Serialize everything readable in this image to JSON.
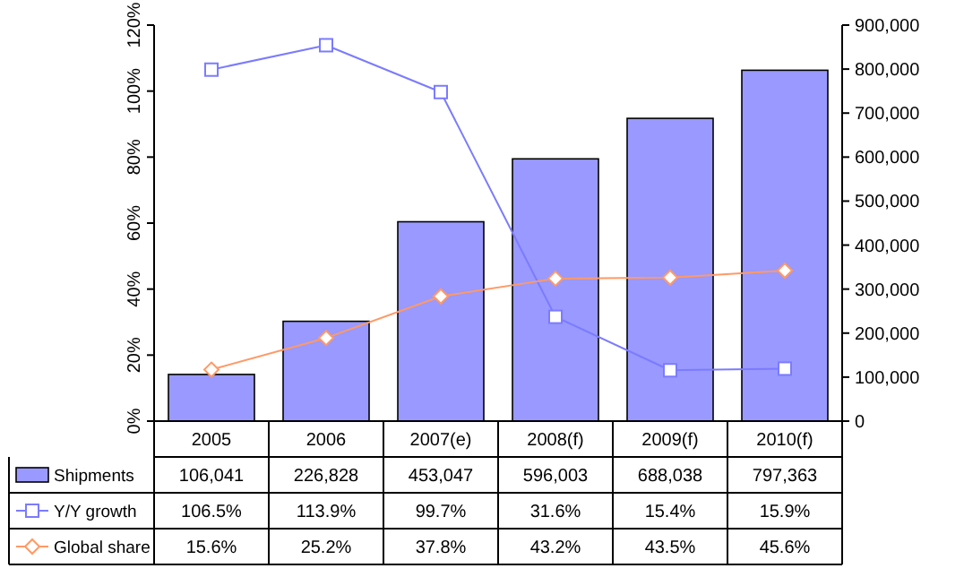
{
  "chart_data": {
    "type": "bar",
    "categories": [
      "2005",
      "2006",
      "2007(e)",
      "2008(f)",
      "2009(f)",
      "2010(f)"
    ],
    "series": [
      {
        "name": "Shipments",
        "axis": "y2",
        "color": "#9999ff",
        "values": [
          106041,
          226828,
          453047,
          596003,
          688038,
          797363
        ],
        "value_labels": [
          "106,041",
          "226,828",
          "453,047",
          "596,003",
          "688,038",
          "797,363"
        ]
      },
      {
        "name": "Y/Y growth",
        "type": "line",
        "axis": "y",
        "color": "#7b7bff",
        "marker": "square",
        "values": [
          106.5,
          113.9,
          99.7,
          31.6,
          15.4,
          15.9
        ],
        "value_labels": [
          "106.5%",
          "113.9%",
          "99.7%",
          "31.6%",
          "15.4%",
          "15.9%"
        ]
      },
      {
        "name": "Global share",
        "type": "line",
        "axis": "y",
        "color": "#ff9966",
        "marker": "diamond",
        "values": [
          15.6,
          25.2,
          37.8,
          43.2,
          43.5,
          45.6
        ],
        "value_labels": [
          "15.6%",
          "25.2%",
          "37.8%",
          "43.2%",
          "43.5%",
          "45.6%"
        ]
      }
    ],
    "ylim": [
      0,
      120
    ],
    "yticks": [
      {
        "value": 0,
        "label": "0%"
      },
      {
        "value": 20,
        "label": "20%"
      },
      {
        "value": 40,
        "label": "40%"
      },
      {
        "value": 60,
        "label": "60%"
      },
      {
        "value": 80,
        "label": "80%"
      },
      {
        "value": 100,
        "label": "100%"
      },
      {
        "value": 120,
        "label": "120%"
      }
    ],
    "y2lim": [
      0,
      900000
    ],
    "y2ticks": [
      {
        "value": 0,
        "label": "0"
      },
      {
        "value": 100000,
        "label": "100,000"
      },
      {
        "value": 200000,
        "label": "200,000"
      },
      {
        "value": 300000,
        "label": "300,000"
      },
      {
        "value": 400000,
        "label": "400,000"
      },
      {
        "value": 500000,
        "label": "500,000"
      },
      {
        "value": 600000,
        "label": "600,000"
      },
      {
        "value": 700000,
        "label": "700,000"
      },
      {
        "value": 800000,
        "label": "800,000"
      },
      {
        "value": 900000,
        "label": "900,000"
      }
    ],
    "grid": false,
    "legend": "bottom"
  }
}
